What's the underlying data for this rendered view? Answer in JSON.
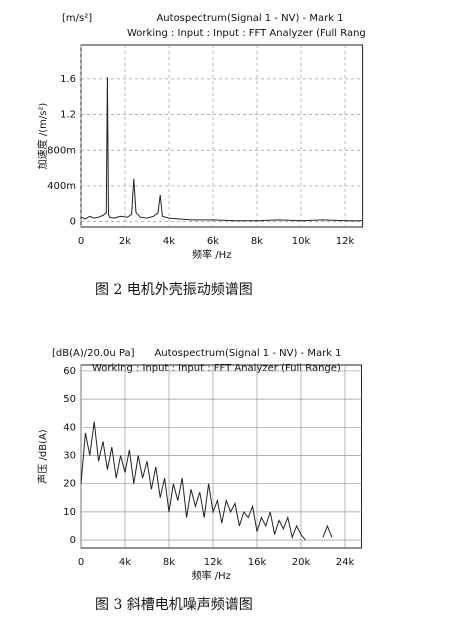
{
  "chart_data": [
    {
      "type": "line",
      "unit_label": "[m/s²]",
      "title": "Autospectrum(Signal 1 - NV) - Mark 1",
      "subtitle": "Working : Input : Input : FFT Analyzer (Full Rang",
      "x_label": "频率 /Hz",
      "y_label": "加速度 /(m/s²)",
      "caption": "图 2   电机外壳振动频谱图",
      "x": [
        0,
        200,
        400,
        600,
        800,
        1000,
        1150,
        1200,
        1250,
        1300,
        1500,
        1800,
        2100,
        2300,
        2400,
        2500,
        2700,
        3000,
        3300,
        3500,
        3600,
        3700,
        4000,
        5000,
        6000,
        7000,
        8000,
        9000,
        10000,
        11000,
        12000,
        12800
      ],
      "values": [
        0.05,
        0.03,
        0.06,
        0.04,
        0.05,
        0.07,
        0.1,
        1.62,
        0.08,
        0.05,
        0.04,
        0.06,
        0.05,
        0.08,
        0.48,
        0.1,
        0.05,
        0.04,
        0.06,
        0.1,
        0.3,
        0.06,
        0.04,
        0.02,
        0.02,
        0.01,
        0.01,
        0.02,
        0.01,
        0.02,
        0.01,
        0.01
      ],
      "color": "#222222",
      "xlim": [
        0,
        12800
      ],
      "ylim": [
        -0.06,
        1.98
      ],
      "xticks": [
        0,
        {
          "value": 2000,
          "label": "2k"
        },
        {
          "value": 4000,
          "label": "4k"
        },
        {
          "value": 6000,
          "label": "6k"
        },
        {
          "value": 8000,
          "label": "8k"
        },
        {
          "value": 10000,
          "label": "10k"
        },
        {
          "value": 12000,
          "label": "12k"
        }
      ],
      "yticks": [
        0,
        {
          "value": 0.4,
          "label": "400m"
        },
        {
          "value": 0.8,
          "label": "800m"
        },
        1.2,
        1.6
      ],
      "grid": true
    },
    {
      "type": "line",
      "unit_label": "[dB(A)/20.0u Pa]",
      "title": "Autospectrum(Signal 1 - NV) - Mark 1",
      "subtitle": "Working : Input : Input : FFT Analyzer (Full Range)",
      "x_label": "频率 /Hz",
      "y_label": "声压 /dB(A)",
      "caption": "图 3   斜槽电机噪声频谱图",
      "x": [
        0,
        400,
        800,
        1200,
        1600,
        2000,
        2400,
        2800,
        3200,
        3600,
        4000,
        4400,
        4800,
        5200,
        5600,
        6000,
        6400,
        6800,
        7200,
        7600,
        8000,
        8400,
        8800,
        9200,
        9600,
        10000,
        10400,
        10800,
        11200,
        11600,
        12000,
        12400,
        12800,
        13200,
        13600,
        14000,
        14400,
        14800,
        15200,
        15600,
        16000,
        16400,
        16800,
        17200,
        17600,
        18000,
        18400,
        18800,
        19200,
        19600,
        20000,
        20400,
        21000,
        22000,
        22400,
        22800
      ],
      "values": [
        20,
        38,
        30,
        42,
        28,
        35,
        25,
        33,
        22,
        30,
        24,
        32,
        20,
        30,
        22,
        28,
        18,
        26,
        15,
        22,
        10,
        20,
        14,
        22,
        8,
        18,
        12,
        17,
        8,
        20,
        10,
        14,
        6,
        14,
        10,
        13,
        5,
        10,
        8,
        12,
        3,
        8,
        5,
        10,
        2,
        7,
        4,
        8,
        1,
        5,
        2,
        0,
        null,
        1,
        5,
        1
      ],
      "color": "#222222",
      "xlim": [
        0,
        25500
      ],
      "ylim": [
        -2.8,
        62.1
      ],
      "xticks": [
        0,
        {
          "value": 4000,
          "label": "4k"
        },
        {
          "value": 8000,
          "label": "8k"
        },
        {
          "value": 12000,
          "label": "12k"
        },
        {
          "value": 16000,
          "label": "16k"
        },
        {
          "value": 20000,
          "label": "20k"
        },
        {
          "value": 24000,
          "label": "24k"
        }
      ],
      "yticks": [
        0,
        10,
        20,
        30,
        40,
        50,
        60
      ],
      "grid": true
    }
  ]
}
